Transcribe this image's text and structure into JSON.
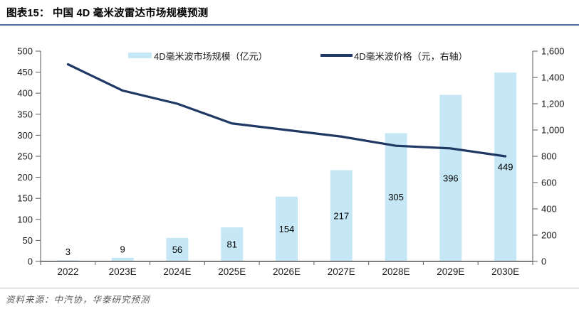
{
  "header": {
    "title": "图表15： 中国 4D 毫米波雷达市场规模预测"
  },
  "legend": {
    "items": [
      {
        "label": "4D毫米波市场规模（亿元）",
        "swatch": "bar"
      },
      {
        "label": "4D毫米波价格（元，右轴）",
        "swatch": "line"
      }
    ]
  },
  "chart_data": {
    "type": "bar+line combo",
    "title": "中国 4D 毫米波雷达市场规模预测",
    "categories": [
      "2022",
      "2023E",
      "2024E",
      "2025E",
      "2026E",
      "2027E",
      "2028E",
      "2029E",
      "2030E"
    ],
    "series": [
      {
        "name": "4D毫米波市场规模（亿元）",
        "type": "bar",
        "axis": "left",
        "values": [
          3,
          9,
          56,
          81,
          154,
          217,
          305,
          396,
          449
        ],
        "data_labels": [
          "3",
          "9",
          "56",
          "81",
          "154",
          "217",
          "305",
          "396",
          "449"
        ],
        "color": "#C6E8F6"
      },
      {
        "name": "4D毫米波价格（元，右轴）",
        "type": "line",
        "axis": "right",
        "values": [
          1500,
          1300,
          1200,
          1050,
          1000,
          950,
          880,
          860,
          800
        ],
        "color": "#1F3864"
      }
    ],
    "left_axis": {
      "min": 0,
      "max": 500,
      "step": 50,
      "ticks": [
        "0",
        "50",
        "100",
        "150",
        "200",
        "250",
        "300",
        "350",
        "400",
        "450",
        "500"
      ]
    },
    "right_axis": {
      "min": 0,
      "max": 1600,
      "step": 200,
      "ticks": [
        "0",
        "200",
        "400",
        "600",
        "800",
        "1,000",
        "1,200",
        "1,400",
        "1,600"
      ]
    },
    "legend_position": "top",
    "grid": false
  },
  "footer": {
    "source": "资料来源：中汽协，华泰研究预测"
  },
  "colors": {
    "bar_fill": "#C6E8F6",
    "line_stroke": "#1F3864",
    "title_rule": "#4E6F9E",
    "x_axis_line": "#808080",
    "y_axis_line": "#595959",
    "tick_line": "#595959",
    "axis_text": "#1A1A1A",
    "label_text": "#000000",
    "source_text": "#595959",
    "source_rule": "#BFBFBF"
  }
}
